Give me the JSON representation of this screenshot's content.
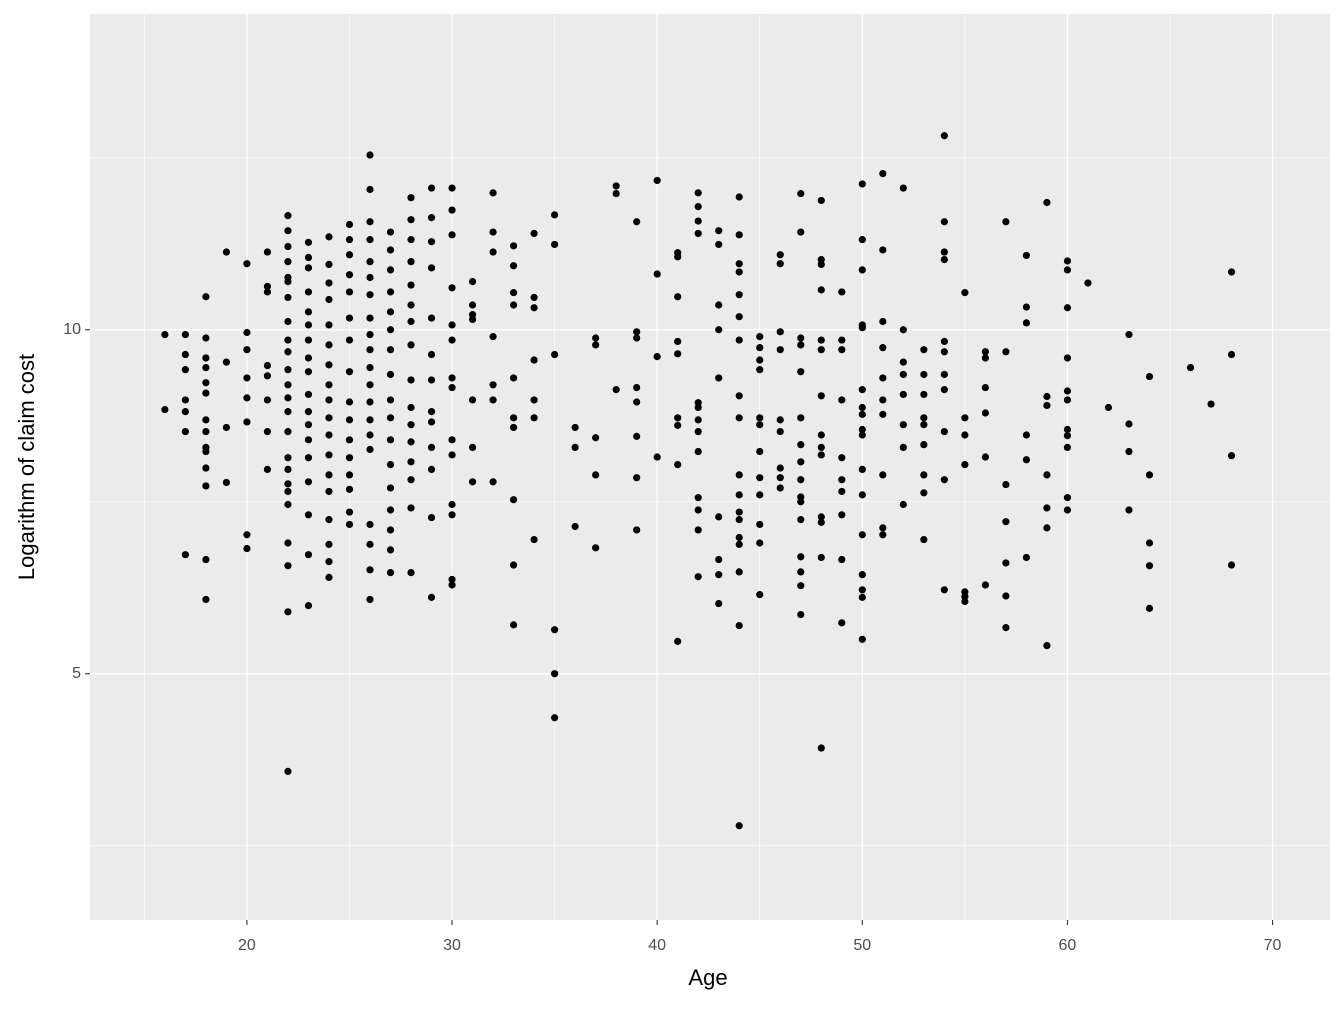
{
  "chart_data": {
    "type": "scatter",
    "x_label": "Age",
    "y_label": "Logarithm of claim cost",
    "xlim": [
      12.35,
      72.8
    ],
    "ylim": [
      1.42,
      14.59
    ],
    "xticks": [
      20,
      30,
      40,
      50,
      60,
      70
    ],
    "yticks": [
      5,
      10
    ],
    "x_minor_ticks": [
      15,
      25,
      35,
      45,
      55,
      65
    ],
    "y_minor_ticks": [
      2.5,
      7.5,
      12.5
    ],
    "grid": true,
    "color": "#000000",
    "x": [
      16,
      16,
      17,
      17,
      17,
      17,
      17,
      17,
      17,
      18,
      18,
      18,
      18,
      18,
      18,
      18,
      18,
      18,
      18,
      18,
      18,
      18,
      18,
      19,
      19,
      19,
      19,
      20,
      20,
      20,
      20,
      20,
      20,
      20,
      20,
      21,
      21,
      21,
      21,
      21,
      21,
      21,
      21,
      22,
      22,
      22,
      22,
      22,
      22,
      22,
      22,
      22,
      22,
      22,
      22,
      22,
      22,
      22,
      22,
      22,
      22,
      22,
      22,
      22,
      22,
      22,
      22,
      23,
      23,
      23,
      23,
      23,
      23,
      23,
      23,
      23,
      23,
      23,
      23,
      23,
      23,
      23,
      23,
      23,
      23,
      24,
      24,
      24,
      24,
      24,
      24,
      24,
      24,
      24,
      24,
      24,
      24,
      24,
      24,
      24,
      24,
      24,
      24,
      25,
      25,
      25,
      25,
      25,
      25,
      25,
      25,
      25,
      25,
      25,
      25,
      25,
      25,
      25,
      25,
      26,
      26,
      26,
      26,
      26,
      26,
      26,
      26,
      26,
      26,
      26,
      26,
      26,
      26,
      26,
      26,
      26,
      26,
      26,
      26,
      27,
      27,
      27,
      27,
      27,
      27,
      27,
      27,
      27,
      27,
      27,
      27,
      27,
      27,
      27,
      27,
      27,
      28,
      28,
      28,
      28,
      28,
      28,
      28,
      28,
      28,
      28,
      28,
      28,
      28,
      28,
      28,
      28,
      29,
      29,
      29,
      29,
      29,
      29,
      29,
      29,
      29,
      29,
      29,
      29,
      29,
      30,
      30,
      30,
      30,
      30,
      30,
      30,
      30,
      30,
      30,
      30,
      30,
      30,
      30,
      31,
      31,
      31,
      31,
      31,
      31,
      31,
      32,
      32,
      32,
      32,
      32,
      32,
      32,
      33,
      33,
      33,
      33,
      33,
      33,
      33,
      33,
      33,
      33,
      34,
      34,
      34,
      34,
      34,
      34,
      34,
      35,
      35,
      35,
      35,
      35,
      35,
      36,
      36,
      36,
      37,
      37,
      37,
      37,
      37,
      38,
      38,
      38,
      39,
      39,
      39,
      39,
      39,
      39,
      39,
      39,
      40,
      40,
      40,
      40,
      41,
      41,
      41,
      41,
      41,
      41,
      41,
      41,
      41,
      42,
      42,
      42,
      42,
      42,
      42,
      42,
      42,
      42,
      42,
      42,
      42,
      42,
      43,
      43,
      43,
      43,
      43,
      43,
      43,
      43,
      43,
      44,
      44,
      44,
      44,
      44,
      44,
      44,
      44,
      44,
      44,
      44,
      44,
      44,
      44,
      44,
      44,
      44,
      44,
      45,
      45,
      45,
      45,
      45,
      45,
      45,
      45,
      45,
      45,
      45,
      45,
      46,
      46,
      46,
      46,
      46,
      46,
      46,
      46,
      46,
      47,
      47,
      47,
      47,
      47,
      47,
      47,
      47,
      47,
      47,
      47,
      47,
      47,
      47,
      47,
      47,
      48,
      48,
      48,
      48,
      48,
      48,
      48,
      48,
      48,
      48,
      48,
      48,
      48,
      48,
      49,
      49,
      49,
      49,
      49,
      49,
      49,
      49,
      49,
      49,
      50,
      50,
      50,
      50,
      50,
      50,
      50,
      50,
      50,
      50,
      50,
      50,
      50,
      50,
      50,
      50,
      50,
      51,
      51,
      51,
      51,
      51,
      51,
      51,
      51,
      51,
      51,
      52,
      52,
      52,
      52,
      52,
      52,
      52,
      52,
      53,
      53,
      53,
      53,
      53,
      53,
      53,
      53,
      53,
      54,
      54,
      54,
      54,
      54,
      54,
      54,
      54,
      54,
      54,
      54,
      55,
      55,
      55,
      55,
      55,
      55,
      55,
      56,
      56,
      56,
      56,
      56,
      56,
      57,
      57,
      57,
      57,
      57,
      57,
      57,
      58,
      58,
      58,
      58,
      58,
      58,
      59,
      59,
      59,
      59,
      59,
      59,
      59,
      60,
      60,
      60,
      60,
      60,
      60,
      60,
      60,
      60,
      60,
      60,
      61,
      62,
      63,
      63,
      63,
      63,
      64,
      64,
      64,
      64,
      64,
      66,
      67,
      68,
      68,
      68,
      68
    ],
    "y": [
      9.93,
      8.84,
      9.93,
      9.64,
      9.42,
      8.98,
      8.81,
      8.52,
      6.73,
      10.48,
      9.88,
      9.59,
      9.45,
      9.23,
      9.08,
      8.69,
      8.52,
      8.29,
      8.23,
      7.99,
      7.73,
      6.66,
      6.08,
      11.13,
      9.53,
      8.58,
      7.78,
      10.96,
      9.96,
      9.71,
      9.3,
      9.01,
      8.66,
      7.02,
      6.82,
      11.13,
      10.63,
      10.55,
      9.48,
      9.33,
      8.98,
      8.52,
      7.97,
      11.66,
      11.44,
      11.21,
      10.99,
      10.76,
      10.7,
      10.47,
      10.12,
      9.85,
      9.68,
      9.42,
      9.2,
      9.01,
      8.81,
      8.52,
      8.14,
      7.97,
      7.76,
      7.65,
      7.46,
      6.9,
      6.57,
      5.9,
      3.58,
      11.27,
      11.05,
      10.9,
      10.55,
      10.26,
      10.07,
      9.85,
      9.59,
      9.39,
      9.06,
      8.81,
      8.62,
      8.4,
      8.14,
      7.79,
      7.31,
      6.73,
      5.99,
      11.35,
      10.95,
      10.68,
      10.44,
      10.07,
      9.78,
      9.49,
      9.2,
      8.98,
      8.72,
      8.47,
      8.18,
      7.89,
      7.65,
      7.24,
      6.88,
      6.63,
      6.4,
      11.53,
      11.31,
      11.09,
      10.8,
      10.55,
      10.17,
      9.85,
      9.39,
      8.95,
      8.69,
      8.4,
      8.14,
      7.89,
      7.68,
      7.35,
      7.17,
      12.54,
      12.04,
      11.57,
      11.31,
      10.99,
      10.76,
      10.51,
      10.17,
      9.93,
      9.71,
      9.45,
      9.2,
      8.95,
      8.69,
      8.47,
      8.26,
      7.17,
      6.88,
      6.51,
      6.08,
      11.42,
      11.16,
      10.87,
      10.55,
      10.26,
      10.0,
      9.71,
      9.35,
      8.98,
      8.72,
      8.4,
      8.04,
      7.7,
      7.38,
      7.09,
      6.8,
      6.47,
      11.92,
      11.6,
      11.31,
      10.99,
      10.65,
      10.36,
      10.12,
      9.78,
      9.27,
      8.87,
      8.62,
      8.37,
      8.08,
      7.82,
      7.41,
      6.47,
      12.06,
      11.63,
      11.28,
      10.9,
      10.17,
      9.64,
      9.27,
      8.81,
      8.66,
      8.29,
      7.97,
      7.27,
      6.11,
      12.06,
      11.74,
      11.38,
      10.61,
      10.07,
      9.85,
      9.3,
      9.16,
      8.4,
      8.18,
      7.46,
      7.31,
      6.37,
      6.29,
      10.7,
      10.36,
      10.22,
      10.15,
      8.98,
      8.29,
      7.79,
      11.99,
      11.42,
      11.13,
      9.9,
      9.2,
      8.98,
      7.79,
      11.22,
      10.93,
      10.54,
      10.36,
      9.3,
      8.72,
      8.58,
      7.53,
      6.58,
      5.71,
      11.4,
      10.47,
      10.32,
      9.56,
      8.98,
      8.72,
      6.95,
      11.67,
      11.24,
      9.64,
      5.64,
      5.0,
      4.36,
      8.58,
      8.29,
      7.14,
      9.88,
      9.78,
      8.43,
      7.89,
      6.83,
      12.09,
      11.98,
      9.13,
      11.57,
      9.97,
      9.88,
      9.16,
      8.95,
      8.45,
      7.85,
      7.09,
      12.17,
      10.81,
      9.61,
      8.15,
      11.12,
      11.06,
      10.48,
      9.83,
      9.65,
      8.72,
      8.61,
      8.04,
      5.47,
      11.99,
      11.79,
      11.58,
      11.4,
      8.94,
      8.87,
      8.69,
      8.52,
      8.23,
      7.56,
      7.38,
      7.09,
      6.41,
      11.44,
      11.24,
      10.36,
      10.0,
      9.3,
      7.28,
      6.66,
      6.44,
      6.02,
      11.93,
      11.38,
      10.96,
      10.84,
      10.51,
      10.19,
      9.85,
      9.04,
      8.72,
      7.89,
      7.6,
      7.35,
      7.24,
      6.98,
      6.88,
      6.48,
      5.7,
      2.79,
      9.9,
      9.74,
      9.56,
      9.42,
      8.72,
      8.62,
      8.23,
      7.85,
      7.6,
      7.17,
      6.9,
      6.15,
      11.09,
      10.96,
      9.97,
      9.71,
      8.69,
      8.52,
      7.99,
      7.85,
      7.7,
      11.98,
      11.42,
      9.88,
      9.78,
      9.39,
      8.72,
      8.33,
      8.08,
      7.82,
      7.57,
      7.5,
      7.24,
      6.7,
      6.48,
      6.28,
      5.86,
      11.88,
      11.02,
      10.95,
      10.58,
      9.85,
      9.71,
      9.04,
      8.47,
      8.29,
      8.18,
      7.28,
      7.2,
      6.69,
      3.92,
      10.55,
      9.85,
      9.71,
      8.98,
      8.14,
      7.82,
      7.65,
      7.31,
      6.66,
      5.74,
      12.12,
      11.31,
      10.87,
      10.07,
      10.03,
      9.13,
      8.87,
      8.77,
      8.55,
      8.47,
      7.97,
      7.6,
      7.02,
      6.44,
      6.22,
      6.11,
      5.5,
      12.27,
      11.16,
      10.12,
      9.74,
      9.3,
      8.98,
      8.77,
      7.89,
      7.12,
      7.02,
      12.06,
      10.0,
      9.53,
      9.35,
      9.06,
      8.62,
      8.29,
      7.46,
      9.71,
      9.35,
      9.06,
      8.72,
      8.62,
      8.33,
      7.89,
      7.63,
      6.95,
      12.82,
      11.57,
      11.13,
      11.02,
      9.83,
      9.68,
      9.35,
      9.13,
      8.52,
      7.82,
      6.22,
      10.54,
      8.72,
      8.47,
      8.04,
      6.19,
      6.12,
      6.05,
      9.68,
      9.59,
      9.16,
      8.79,
      8.15,
      6.29,
      11.57,
      9.68,
      7.75,
      7.21,
      6.61,
      6.13,
      5.67,
      11.08,
      10.33,
      10.1,
      8.47,
      8.11,
      6.69,
      11.85,
      9.03,
      8.9,
      7.89,
      7.41,
      7.12,
      5.41,
      11.0,
      10.87,
      10.32,
      9.59,
      9.11,
      8.98,
      8.55,
      8.46,
      8.29,
      7.56,
      7.38,
      10.68,
      8.87,
      9.93,
      8.63,
      8.23,
      7.38,
      9.32,
      7.89,
      6.9,
      6.57,
      5.95,
      9.45,
      8.92,
      10.84,
      9.64,
      8.17,
      6.58
    ]
  }
}
